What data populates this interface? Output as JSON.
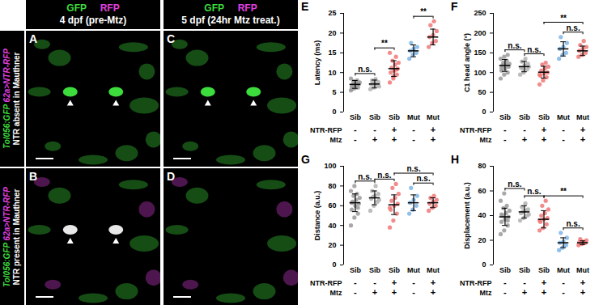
{
  "image_panels": {
    "header": [
      {
        "channels": [
          "GFP",
          "RFP"
        ],
        "title": "4 dpf (pre-Mtz)"
      },
      {
        "channels": [
          "GFP",
          "RFP"
        ],
        "title": "5 dpf (24hr Mtz treat.)"
      }
    ],
    "rows": [
      {
        "genotype": [
          "Tol056:GFP",
          "62a>NTR-RFP"
        ],
        "condition": "NTR absent in Mauthner",
        "panels": [
          "A",
          "C"
        ]
      },
      {
        "genotype": [
          "Tol056:GFP",
          "62a>NTR-RFP"
        ],
        "condition": "NTR present in Mauthner",
        "panels": [
          "B",
          "D"
        ]
      }
    ]
  },
  "chart_data": [
    {
      "type": "scatter",
      "panel": "E",
      "ylabel": "Latency (ms)",
      "categories": [
        "Sib",
        "Sib",
        "Sib",
        "Mut",
        "Mut"
      ],
      "conditions": [
        {
          "label": "NTR-RFP",
          "values": [
            "-",
            "-",
            "+",
            "-",
            "+"
          ]
        },
        {
          "label": "Mtz",
          "values": [
            "-",
            "+",
            "+",
            "-",
            "+"
          ]
        }
      ],
      "colors": [
        "#9a9a9a",
        "#b2b2b2",
        "#f07878",
        "#7db4e6",
        "#f07878"
      ],
      "points": [
        [
          5.5,
          6,
          6.2,
          6.5,
          6.8,
          7,
          7,
          7.2,
          7.5,
          7.8,
          8,
          8.5,
          6.3,
          7.1,
          5.8
        ],
        [
          5.8,
          6.2,
          6.8,
          7,
          7.3,
          7.6,
          8,
          8.4,
          6.5,
          7.2
        ],
        [
          7.5,
          8.5,
          9.5,
          10,
          10.5,
          11,
          11.2,
          12,
          12.5,
          13,
          14,
          15,
          9,
          10.8
        ],
        [
          13.5,
          14.5,
          15,
          15.5,
          16,
          16.5,
          17.5
        ],
        [
          16.5,
          17.5,
          18,
          19,
          19.5,
          20.5,
          22,
          23
        ]
      ],
      "means": [
        7,
        7.1,
        11,
        15.5,
        19
      ],
      "errors": [
        1,
        1,
        2,
        1.5,
        2
      ],
      "ylim": [
        0,
        25
      ],
      "yticks": [
        0,
        5,
        10,
        15,
        20,
        25
      ],
      "annotations": [
        {
          "from": 0,
          "to": 1,
          "text": "n.s."
        },
        {
          "from": 1,
          "to": 2,
          "text": "**"
        },
        {
          "from": 3,
          "to": 4,
          "text": "**"
        }
      ]
    },
    {
      "type": "scatter",
      "panel": "F",
      "ylabel": "C1 head angle (°)",
      "categories": [
        "Sib",
        "Sib",
        "Sib",
        "Mut",
        "Mut"
      ],
      "conditions": [
        {
          "label": "NTR-RFP",
          "values": [
            "-",
            "-",
            "+",
            "-",
            "+"
          ]
        },
        {
          "label": "Mtz",
          "values": [
            "-",
            "+",
            "+",
            "-",
            "+"
          ]
        }
      ],
      "colors": [
        "#9a9a9a",
        "#b2b2b2",
        "#f07878",
        "#7db4e6",
        "#f07878"
      ],
      "points": [
        [
          85,
          95,
          100,
          105,
          110,
          115,
          118,
          120,
          122,
          125,
          130,
          135,
          140,
          145,
          112
        ],
        [
          95,
          100,
          108,
          112,
          118,
          122,
          128,
          135,
          115,
          110
        ],
        [
          70,
          80,
          88,
          92,
          98,
          100,
          105,
          110,
          115,
          120,
          125,
          95
        ],
        [
          135,
          145,
          150,
          160,
          165,
          175,
          190
        ],
        [
          140,
          145,
          150,
          155,
          160,
          165,
          170,
          180
        ]
      ],
      "means": [
        118,
        115,
        101,
        160,
        155
      ],
      "errors": [
        15,
        13,
        15,
        18,
        12
      ],
      "ylim": [
        0,
        250
      ],
      "yticks": [
        0,
        50,
        100,
        150,
        200,
        250
      ],
      "annotations": [
        {
          "from": 0,
          "to": 1,
          "text": "n.s."
        },
        {
          "from": 1,
          "to": 2,
          "text": "n.s."
        },
        {
          "from": 2,
          "to": 4,
          "text": "**"
        },
        {
          "from": 3,
          "to": 4,
          "text": "n.s."
        }
      ]
    },
    {
      "type": "scatter",
      "panel": "G",
      "ylabel": "Distance (a.u.)",
      "categories": [
        "Sib",
        "Sib",
        "Sib",
        "Mut",
        "Mut"
      ],
      "conditions": [
        {
          "label": "NTR-RFP",
          "values": [
            "-",
            "-",
            "+",
            "-",
            "+"
          ]
        },
        {
          "label": "Mtz",
          "values": [
            "-",
            "+",
            "+",
            "-",
            "+"
          ]
        }
      ],
      "colors": [
        "#9a9a9a",
        "#b2b2b2",
        "#f07878",
        "#7db4e6",
        "#f07878"
      ],
      "points": [
        [
          40,
          48,
          52,
          56,
          60,
          62,
          64,
          66,
          68,
          70,
          72,
          75,
          80,
          58,
          63
        ],
        [
          55,
          60,
          64,
          67,
          70,
          72,
          75,
          80,
          66,
          69
        ],
        [
          38,
          45,
          52,
          56,
          60,
          62,
          65,
          68,
          72,
          78,
          82,
          58
        ],
        [
          52,
          56,
          60,
          63,
          66,
          70,
          78
        ],
        [
          55,
          58,
          60,
          62,
          64,
          66,
          68,
          70
        ]
      ],
      "means": [
        63,
        68,
        61,
        63,
        63
      ],
      "errors": [
        9,
        7,
        10,
        8,
        5
      ],
      "ylim": [
        0,
        100
      ],
      "yticks": [
        0,
        20,
        40,
        60,
        80,
        100
      ],
      "annotations": [
        {
          "from": 0,
          "to": 1,
          "text": "n.s."
        },
        {
          "from": 1,
          "to": 2,
          "text": "n.s."
        },
        {
          "from": 2,
          "to": 4,
          "text": "n.s."
        },
        {
          "from": 3,
          "to": 4,
          "text": "n.s."
        }
      ]
    },
    {
      "type": "scatter",
      "panel": "H",
      "ylabel": "Displacement (a.u.)",
      "categories": [
        "Sib",
        "Sib",
        "Sib",
        "Mut",
        "Mut"
      ],
      "conditions": [
        {
          "label": "NTR-RFP",
          "values": [
            "-",
            "-",
            "+",
            "-",
            "+"
          ]
        },
        {
          "label": "Mtz",
          "values": [
            "-",
            "+",
            "+",
            "-",
            "+"
          ]
        }
      ],
      "colors": [
        "#9a9a9a",
        "#b2b2b2",
        "#f07878",
        "#7db4e6",
        "#f07878"
      ],
      "points": [
        [
          25,
          28,
          32,
          35,
          37,
          39,
          40,
          42,
          44,
          46,
          48,
          52,
          58,
          36,
          41
        ],
        [
          36,
          38,
          40,
          42,
          44,
          45,
          47,
          50,
          41,
          43
        ],
        [
          28,
          30,
          33,
          35,
          37,
          38,
          40,
          42,
          45,
          48,
          52,
          36
        ],
        [
          12,
          14,
          16,
          18,
          19,
          22,
          26
        ],
        [
          16,
          17,
          18,
          18.5,
          19,
          20,
          21
        ]
      ],
      "means": [
        39,
        43,
        37,
        18,
        18
      ],
      "errors": [
        7,
        5,
        7,
        4,
        1.5
      ],
      "ylim": [
        0,
        80
      ],
      "yticks": [
        0,
        20,
        40,
        60,
        80
      ],
      "annotations": [
        {
          "from": 0,
          "to": 1,
          "text": "n.s."
        },
        {
          "from": 1,
          "to": 2,
          "text": "n.s."
        },
        {
          "from": 2,
          "to": 4,
          "text": "**"
        },
        {
          "from": 3,
          "to": 4,
          "text": "n.s."
        }
      ]
    }
  ]
}
